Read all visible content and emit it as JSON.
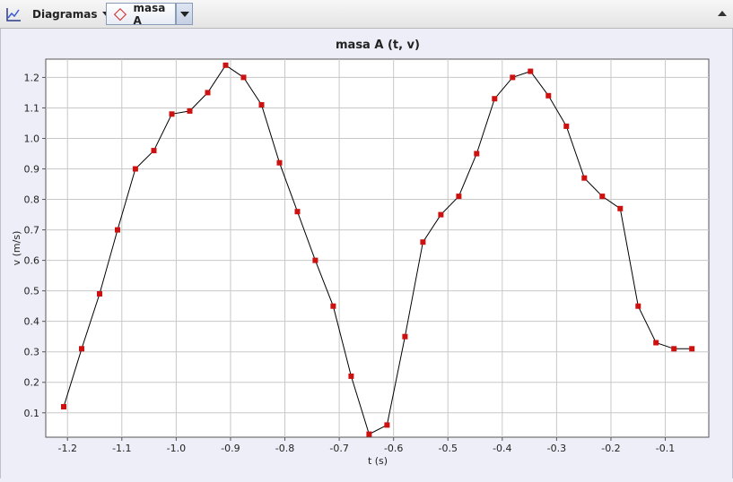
{
  "toolbar": {
    "chart_icon": "line-chart-icon",
    "diagrams_label": "Diagramas",
    "series_label": "masa A",
    "series_marker_color": "#d42020"
  },
  "chart_data": {
    "type": "line",
    "title": "masa A (t, v)",
    "xlabel": "t (s)",
    "ylabel": "v (m/s)",
    "xlim": [
      -1.24,
      -0.02
    ],
    "ylim": [
      0.02,
      1.26
    ],
    "x_ticks": [
      -1.2,
      -1.1,
      -1.0,
      -0.9,
      -0.8,
      -0.7,
      -0.6,
      -0.5,
      -0.4,
      -0.3,
      -0.2,
      -0.1
    ],
    "x_tick_labels": [
      "-1.2",
      "-1.1",
      "-1.0",
      "-0.9",
      "-0.8",
      "-0.7",
      "-0.6",
      "-0.5",
      "-0.4",
      "-0.3",
      "-0.2",
      "-0.1"
    ],
    "y_ticks": [
      0.1,
      0.2,
      0.3,
      0.4,
      0.5,
      0.6,
      0.7,
      0.8,
      0.9,
      1.0,
      1.1,
      1.2
    ],
    "y_tick_labels": [
      "0.1",
      "0.2",
      "0.3",
      "0.4",
      "0.5",
      "0.6",
      "0.7",
      "0.8",
      "0.9",
      "1.0",
      "1.1",
      "1.2"
    ],
    "grid": true,
    "series": [
      {
        "line_color": "#000000",
        "marker_color": "#cc1111",
        "x": [
          -1.207,
          -1.174,
          -1.141,
          -1.108,
          -1.075,
          -1.041,
          -1.008,
          -0.975,
          -0.942,
          -0.909,
          -0.876,
          -0.843,
          -0.81,
          -0.777,
          -0.744,
          -0.711,
          -0.678,
          -0.645,
          -0.612,
          -0.579,
          -0.546,
          -0.513,
          -0.48,
          -0.447,
          -0.414,
          -0.381,
          -0.348,
          -0.315,
          -0.282,
          -0.249,
          -0.216,
          -0.183,
          -0.15,
          -0.117,
          -0.084,
          -0.051
        ],
        "y": [
          0.12,
          0.31,
          0.49,
          0.7,
          0.9,
          0.96,
          1.08,
          1.09,
          1.15,
          1.24,
          1.2,
          1.11,
          0.92,
          0.76,
          0.6,
          0.45,
          0.22,
          0.03,
          0.06,
          0.35,
          0.66,
          0.75,
          0.81,
          0.95,
          1.13,
          1.2,
          1.22,
          1.14,
          1.04,
          0.87,
          0.81,
          0.77,
          0.45,
          0.33,
          0.31,
          0.31
        ]
      }
    ]
  }
}
